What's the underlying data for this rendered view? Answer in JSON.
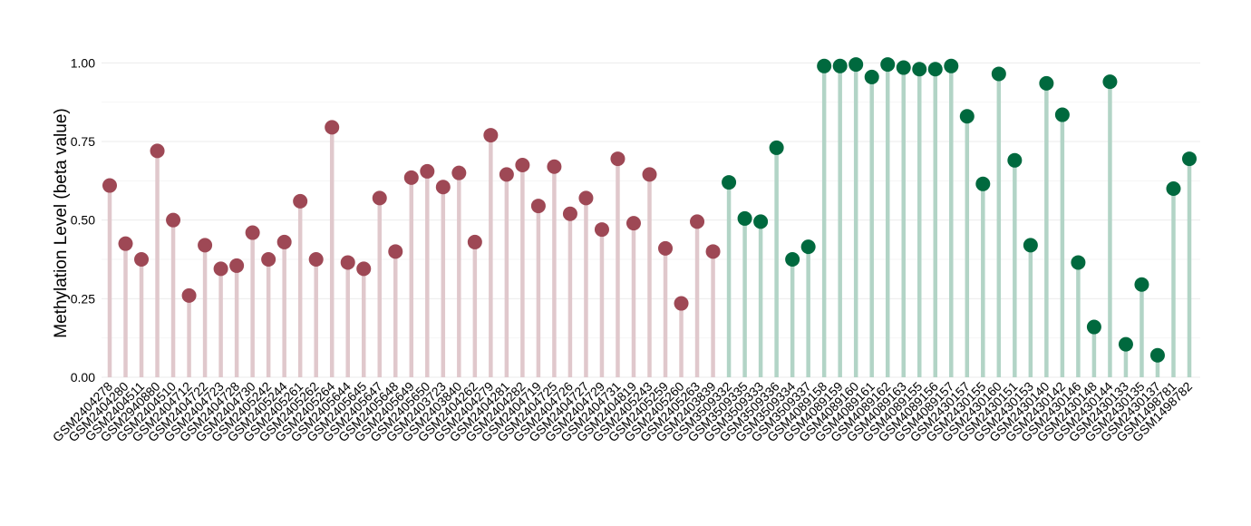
{
  "chart_data": {
    "type": "lollipop",
    "title": "",
    "xlabel": "",
    "ylabel": "Methylation Level (beta value)",
    "ylim": [
      0,
      1.05
    ],
    "y_ticks": [
      "0.00",
      "0.25",
      "0.50",
      "0.75",
      "1.00"
    ],
    "y_tick_values": [
      0,
      0.25,
      0.5,
      0.75,
      1.0
    ],
    "grid": true,
    "legend": "none",
    "series": [
      {
        "color": "#9e4855",
        "stem_color": "#e0c8cc",
        "categories": [
          "GSM2404278",
          "GSM2404280",
          "GSM2404511",
          "GSM2940880",
          "GSM2404510",
          "GSM2404712",
          "GSM2404722",
          "GSM2404723",
          "GSM2404728",
          "GSM2404730",
          "GSM2405242",
          "GSM2405244",
          "GSM2405261",
          "GSM2405262",
          "GSM2405264",
          "GSM2405644",
          "GSM2405645",
          "GSM2405647",
          "GSM2405648",
          "GSM2405649",
          "GSM2405650",
          "GSM2403723",
          "GSM2403840",
          "GSM2404262",
          "GSM2404279",
          "GSM2404281",
          "GSM2404282",
          "GSM2404719",
          "GSM2404725",
          "GSM2404726",
          "GSM2404727",
          "GSM2404729",
          "GSM2404731",
          "GSM2404819",
          "GSM2405243",
          "GSM2405259",
          "GSM2405260",
          "GSM2405263",
          "GSM2403839"
        ],
        "values": [
          0.61,
          0.425,
          0.375,
          0.72,
          0.5,
          0.26,
          0.42,
          0.345,
          0.355,
          0.46,
          0.375,
          0.43,
          0.56,
          0.375,
          0.795,
          0.365,
          0.345,
          0.57,
          0.4,
          0.635,
          0.655,
          0.605,
          0.65,
          0.43,
          0.77,
          0.645,
          0.675,
          0.545,
          0.67,
          0.52,
          0.57,
          0.47,
          0.695,
          0.49,
          0.645,
          0.41,
          0.235,
          0.495,
          0.4
        ]
      },
      {
        "color": "#00693e",
        "stem_color": "#b2d4c6",
        "categories": [
          "GSM3509332",
          "GSM3509335",
          "GSM3509333",
          "GSM3509336",
          "GSM3509334",
          "GSM3509337",
          "GSM4089158",
          "GSM4089159",
          "GSM4089160",
          "GSM4089161",
          "GSM4089162",
          "GSM4089163",
          "GSM4089155",
          "GSM4089156",
          "GSM4089157",
          "GSM2430157",
          "GSM2430155",
          "GSM2430160",
          "GSM2430151",
          "GSM2430153",
          "GSM2430140",
          "GSM2430142",
          "GSM2430146",
          "GSM2430148",
          "GSM2430144",
          "GSM2430133",
          "GSM2430135",
          "GSM2430137",
          "GSM1498781",
          "GSM1498782"
        ],
        "values": [
          0.62,
          0.505,
          0.495,
          0.73,
          0.375,
          0.415,
          0.99,
          0.99,
          0.995,
          0.955,
          0.995,
          0.985,
          0.98,
          0.98,
          0.99,
          0.83,
          0.615,
          0.965,
          0.69,
          0.42,
          0.935,
          0.835,
          0.365,
          0.16,
          0.94,
          0.105,
          0.295,
          0.07,
          0.6,
          0.695
        ]
      }
    ]
  }
}
